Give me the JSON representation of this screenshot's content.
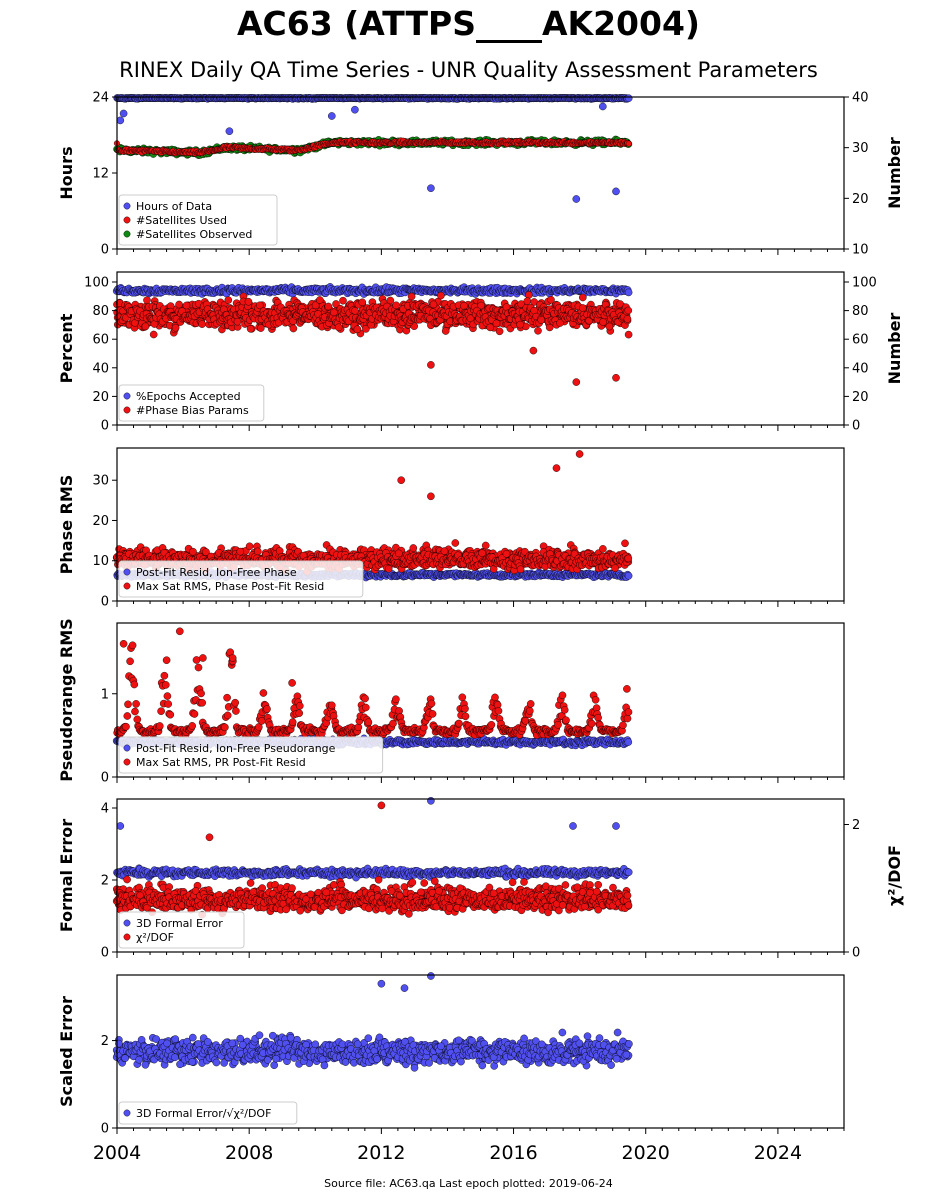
{
  "header": {
    "title": "AC63 (ATTPS____AK2004)",
    "subtitle": "RINEX Daily QA Time Series - UNR Quality Assessment Parameters"
  },
  "footer": {
    "text": "Source file: AC63.qa Last epoch plotted: 2019-06-24"
  },
  "colors": {
    "blue": "#5050f0",
    "red": "#ee1111",
    "green": "#118811"
  },
  "chart_data": [
    {
      "type": "scatter",
      "panel": "hours-satellites",
      "ylabel": "Hours",
      "y2label": "Number",
      "ylim": [
        0,
        24
      ],
      "y2lim": [
        10,
        40
      ],
      "yticks": [
        "0",
        "12",
        "24"
      ],
      "y2ticks": [
        "10",
        "20",
        "30",
        "40"
      ],
      "x_range": [
        2004.0,
        2019.48
      ],
      "legend": {
        "position": "lower-left",
        "entries": [
          "Hours of Data",
          "#Satellites Used",
          "#Satellites Observed"
        ]
      },
      "series": [
        {
          "name": "Hours of Data",
          "axis": "left",
          "typical": 23.9,
          "outliers_year_value": [
            [
              2004.1,
              20.3
            ],
            [
              2004.2,
              21.4
            ],
            [
              2007.4,
              18.6
            ],
            [
              2010.5,
              21.0
            ],
            [
              2013.5,
              9.6
            ],
            [
              2017.9,
              7.9
            ],
            [
              2019.1,
              9.1
            ],
            [
              2018.7,
              22.5
            ],
            [
              2011.2,
              22.0
            ]
          ]
        },
        {
          "name": "#Satellites Observed",
          "axis": "right",
          "level_by_year": [
            [
              2004.0,
              29.5
            ],
            [
              2006.5,
              29.0
            ],
            [
              2007.3,
              30.0
            ],
            [
              2009.5,
              29.5
            ],
            [
              2010.5,
              31.0
            ],
            [
              2013.0,
              31.0
            ],
            [
              2019.48,
              31.0
            ]
          ]
        },
        {
          "name": "#Satellites Used",
          "axis": "right",
          "level_by_year": [
            [
              2004.0,
              29.5
            ],
            [
              2006.5,
              29.0
            ],
            [
              2007.3,
              30.0
            ],
            [
              2009.5,
              29.5
            ],
            [
              2010.5,
              31.0
            ],
            [
              2013.0,
              31.0
            ],
            [
              2019.48,
              31.0
            ]
          ]
        }
      ]
    },
    {
      "type": "scatter",
      "panel": "percent-phasebias",
      "ylabel": "Percent",
      "y2label": "Number",
      "ylim": [
        0,
        107
      ],
      "y2lim": [
        0,
        107
      ],
      "yticks": [
        "0",
        "20",
        "40",
        "60",
        "80",
        "100"
      ],
      "y2ticks": [
        "0",
        "20",
        "40",
        "60",
        "80",
        "100"
      ],
      "legend": {
        "position": "lower-left",
        "entries": [
          "%Epochs Accepted",
          "#Phase Bias Params"
        ]
      },
      "series": [
        {
          "name": "%Epochs Accepted",
          "axis": "left",
          "typical": 94
        },
        {
          "name": "#Phase Bias Params",
          "axis": "right",
          "typical": 77,
          "outliers_year_value": [
            [
              2013.5,
              42
            ],
            [
              2016.6,
              52
            ],
            [
              2017.9,
              30
            ],
            [
              2019.1,
              33
            ]
          ]
        }
      ]
    },
    {
      "type": "scatter",
      "panel": "phase-rms",
      "ylabel": "Phase RMS",
      "ylim": [
        0,
        38
      ],
      "yticks": [
        "0",
        "10",
        "20",
        "30"
      ],
      "legend": {
        "position": "lower-left",
        "entries": [
          "Post-Fit Resid, Ion-Free Phase",
          "Max Sat RMS, Phase Post-Fit Resid"
        ]
      },
      "series": [
        {
          "name": "Post-Fit Resid, Ion-Free Phase",
          "typical": 6.5
        },
        {
          "name": "Max Sat RMS, Phase Post-Fit Resid",
          "typical": 10,
          "outliers_year_value": [
            [
              2012.6,
              30
            ],
            [
              2013.5,
              26
            ],
            [
              2017.3,
              33
            ],
            [
              2018.0,
              36.5
            ]
          ]
        }
      ]
    },
    {
      "type": "scatter",
      "panel": "pseudorange-rms",
      "ylabel": "Pseudorange RMS",
      "ylim": [
        0,
        1.85
      ],
      "yticks": [
        "0",
        "1"
      ],
      "legend": {
        "position": "lower-left",
        "entries": [
          "Post-Fit Resid, Ion-Free Pseudorange",
          "Max Sat RMS, PR Post-Fit Resid"
        ]
      },
      "series": [
        {
          "name": "Post-Fit Resid, Ion-Free Pseudorange",
          "typical": 0.42
        },
        {
          "name": "Max Sat RMS, PR Post-Fit Resid",
          "typical": 0.55,
          "outliers_year_value": [
            [
              2004.2,
              1.6
            ],
            [
              2005.9,
              1.75
            ],
            [
              2006.6,
              1.43
            ],
            [
              2007.5,
              1.43
            ],
            [
              2009.3,
              1.13
            ]
          ]
        }
      ]
    },
    {
      "type": "scatter",
      "panel": "formal-error",
      "ylabel": "Formal Error",
      "y2label": "χ²/DOF",
      "ylim": [
        0,
        4.25
      ],
      "y2lim": [
        0,
        2.4
      ],
      "yticks": [
        "0",
        "2",
        "4"
      ],
      "y2ticks": [
        "0",
        "2"
      ],
      "legend": {
        "position": "lower-left",
        "entries": [
          "3D Formal Error",
          "χ²/DOF"
        ]
      },
      "series": [
        {
          "name": "3D Formal Error",
          "axis": "left",
          "typical": 2.2,
          "outliers_year_value": [
            [
              2013.5,
              4.2
            ],
            [
              2019.1,
              3.5
            ],
            [
              2017.8,
              3.5
            ],
            [
              2004.1,
              3.5
            ]
          ]
        },
        {
          "name": "χ²/DOF",
          "axis": "right",
          "typical": 0.7,
          "outliers_year_value": [
            [
              2012.0,
              2.3
            ],
            [
              2006.8,
              1.8
            ]
          ]
        }
      ]
    },
    {
      "type": "scatter",
      "panel": "scaled-error",
      "ylabel": "Scaled Error",
      "ylim": [
        0,
        3.5
      ],
      "yticks": [
        "0",
        "2"
      ],
      "legend": {
        "position": "lower-left",
        "entries": [
          "3D Formal Error/√χ²/DOF"
        ]
      },
      "series": [
        {
          "name": "3D Formal Error/√χ²/DOF",
          "typical": 1.75,
          "outliers_year_value": [
            [
              2013.5,
              3.5
            ],
            [
              2012.0,
              3.3
            ],
            [
              2012.7,
              3.2
            ]
          ]
        }
      ]
    }
  ],
  "x_axis": {
    "range": [
      2004,
      2026
    ],
    "ticks": [
      "2004",
      "2008",
      "2012",
      "2016",
      "2020",
      "2024"
    ]
  }
}
